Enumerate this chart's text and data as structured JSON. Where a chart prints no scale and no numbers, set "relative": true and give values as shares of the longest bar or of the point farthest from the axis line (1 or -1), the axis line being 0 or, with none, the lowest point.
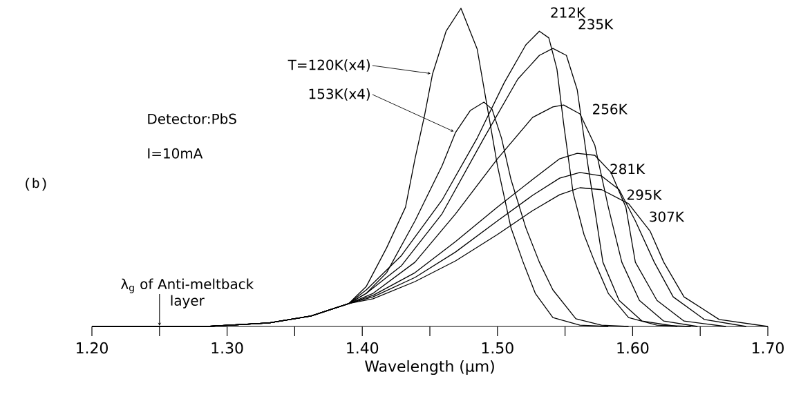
{
  "chart_data": {
    "type": "line",
    "relative": true,
    "xlabel": "Wavelength (μm)",
    "xlim": [
      1.2,
      1.7
    ],
    "xticks": [
      {
        "value": 1.2,
        "label": "1.20"
      },
      {
        "value": 1.25,
        "label": null
      },
      {
        "value": 1.3,
        "label": "1.30"
      },
      {
        "value": 1.35,
        "label": null
      },
      {
        "value": 1.4,
        "label": "1.40"
      },
      {
        "value": 1.45,
        "label": null
      },
      {
        "value": 1.5,
        "label": "1.50"
      },
      {
        "value": 1.55,
        "label": null
      },
      {
        "value": 1.6,
        "label": "1.60"
      },
      {
        "value": 1.65,
        "label": null
      },
      {
        "value": 1.7,
        "label": "1.70"
      }
    ],
    "annotations": [
      "(b)",
      "Detector:PbS",
      "I=10mA",
      {
        "text": "λ$_{g}$ of Anti-meltback layer",
        "x": 1.25,
        "y": 0
      }
    ],
    "series": [
      {
        "name": "T=120K(x4)",
        "color": "#000000",
        "x": [
          1.2,
          1.285,
          1.331,
          1.362,
          1.39,
          1.403,
          1.418,
          1.432,
          1.439,
          1.446,
          1.452,
          1.462,
          1.473,
          1.485,
          1.492,
          1.5,
          1.51,
          1.519,
          1.528,
          1.541,
          1.561,
          1.582
        ],
        "values": [
          0,
          0,
          0.011,
          0.033,
          0.072,
          0.126,
          0.247,
          0.375,
          0.527,
          0.662,
          0.794,
          0.928,
          1.0,
          0.872,
          0.701,
          0.505,
          0.31,
          0.202,
          0.104,
          0.028,
          0.004,
          0
        ]
      },
      {
        "name": "153K(x4)",
        "color": "#000000",
        "x": [
          1.2,
          1.285,
          1.331,
          1.362,
          1.39,
          1.403,
          1.418,
          1.439,
          1.459,
          1.469,
          1.48,
          1.49,
          1.496,
          1.503,
          1.51,
          1.521,
          1.531,
          1.541,
          1.558,
          1.577,
          1.597
        ],
        "values": [
          0,
          0,
          0.011,
          0.033,
          0.072,
          0.104,
          0.169,
          0.332,
          0.505,
          0.61,
          0.679,
          0.705,
          0.683,
          0.592,
          0.462,
          0.31,
          0.202,
          0.115,
          0.024,
          0.004,
          0
        ]
      },
      {
        "name": "212K",
        "color": "#000000",
        "x": [
          1.2,
          1.285,
          1.331,
          1.362,
          1.39,
          1.403,
          1.429,
          1.459,
          1.485,
          1.505,
          1.521,
          1.531,
          1.538,
          1.544,
          1.549,
          1.556,
          1.564,
          1.572,
          1.582,
          1.597,
          1.618,
          1.643
        ],
        "values": [
          0,
          0,
          0.011,
          0.033,
          0.072,
          0.115,
          0.223,
          0.397,
          0.592,
          0.766,
          0.885,
          0.928,
          0.907,
          0.809,
          0.636,
          0.419,
          0.289,
          0.202,
          0.104,
          0.028,
          0.004,
          0
        ]
      },
      {
        "name": "235K",
        "color": "#000000",
        "x": [
          1.2,
          1.285,
          1.331,
          1.362,
          1.39,
          1.403,
          1.429,
          1.459,
          1.49,
          1.515,
          1.531,
          1.541,
          1.551,
          1.559,
          1.567,
          1.578,
          1.59,
          1.607,
          1.633
        ],
        "values": [
          0,
          0,
          0.011,
          0.033,
          0.072,
          0.104,
          0.191,
          0.354,
          0.592,
          0.777,
          0.852,
          0.874,
          0.852,
          0.744,
          0.505,
          0.202,
          0.082,
          0.017,
          0
        ]
      },
      {
        "name": "256K",
        "color": "#000000",
        "x": [
          1.2,
          1.285,
          1.331,
          1.362,
          1.39,
          1.408,
          1.439,
          1.469,
          1.5,
          1.526,
          1.541,
          1.549,
          1.561,
          1.572,
          1.582,
          1.592,
          1.605,
          1.623,
          1.648
        ],
        "values": [
          0,
          0,
          0.011,
          0.033,
          0.072,
          0.104,
          0.202,
          0.354,
          0.527,
          0.657,
          0.69,
          0.696,
          0.668,
          0.57,
          0.375,
          0.202,
          0.082,
          0.017,
          0
        ]
      },
      {
        "name": "281K",
        "color": "#000000",
        "x": [
          1.2,
          1.285,
          1.331,
          1.362,
          1.39,
          1.408,
          1.439,
          1.469,
          1.5,
          1.526,
          1.546,
          1.559,
          1.572,
          1.584,
          1.595,
          1.602,
          1.618,
          1.638,
          1.669
        ],
        "values": [
          0,
          0,
          0.011,
          0.033,
          0.072,
          0.098,
          0.169,
          0.267,
          0.375,
          0.462,
          0.527,
          0.544,
          0.538,
          0.484,
          0.375,
          0.202,
          0.082,
          0.017,
          0
        ]
      },
      {
        "name": "295K",
        "color": "#000000",
        "x": [
          1.2,
          1.285,
          1.331,
          1.362,
          1.39,
          1.408,
          1.439,
          1.469,
          1.5,
          1.526,
          1.546,
          1.561,
          1.577,
          1.59,
          1.602,
          1.616,
          1.63,
          1.653,
          1.684
        ],
        "values": [
          0,
          0,
          0.011,
          0.033,
          0.072,
          0.093,
          0.154,
          0.234,
          0.332,
          0.412,
          0.466,
          0.484,
          0.473,
          0.43,
          0.332,
          0.202,
          0.093,
          0.022,
          0
        ]
      },
      {
        "name": "307K",
        "color": "#000000",
        "x": [
          1.2,
          1.285,
          1.331,
          1.362,
          1.39,
          1.408,
          1.439,
          1.469,
          1.5,
          1.526,
          1.546,
          1.561,
          1.577,
          1.597,
          1.613,
          1.623,
          1.638,
          1.664,
          1.7
        ],
        "values": [
          0,
          0,
          0.011,
          0.033,
          0.072,
          0.087,
          0.141,
          0.206,
          0.289,
          0.364,
          0.414,
          0.436,
          0.43,
          0.386,
          0.299,
          0.202,
          0.093,
          0.022,
          0
        ]
      }
    ]
  }
}
